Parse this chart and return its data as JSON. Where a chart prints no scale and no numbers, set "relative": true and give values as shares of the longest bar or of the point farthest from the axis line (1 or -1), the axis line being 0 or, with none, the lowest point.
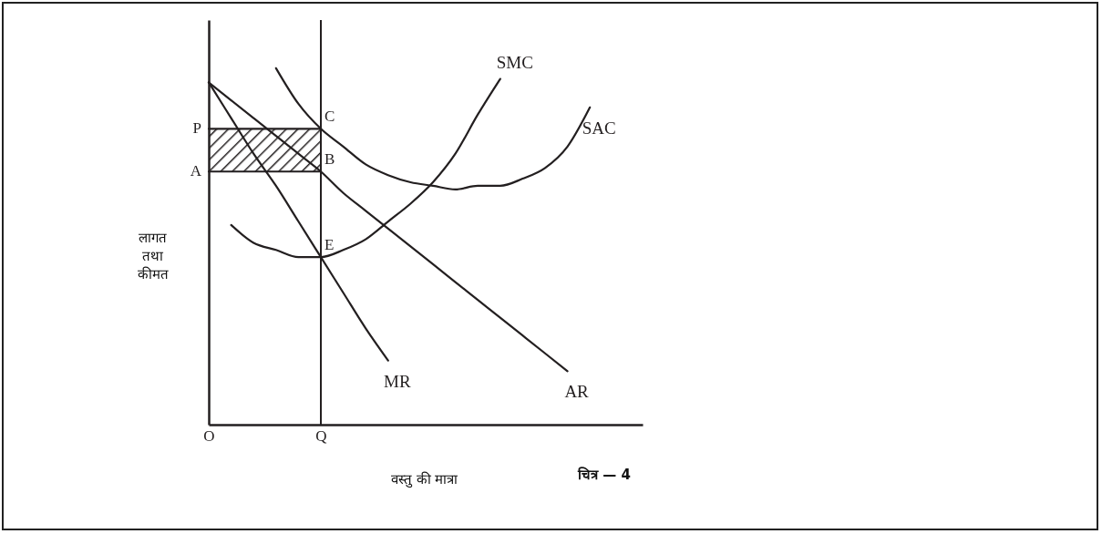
{
  "chart_data": {
    "type": "line",
    "relative": true,
    "xlabel": "वस्तु की मात्रा",
    "ylabel": "लागत तथा कीमत",
    "annotations": [
      {
        "text": "P",
        "x": "O",
        "y": 0.83
      },
      {
        "text": "A",
        "x": "O",
        "y": 0.71
      },
      {
        "text": "C",
        "x": "Q",
        "y": 0.83
      },
      {
        "text": "B",
        "x": "Q",
        "y": 0.71
      },
      {
        "text": "E",
        "x": "Q",
        "y": 0.47
      },
      "चित्र — 4"
    ],
    "categories": [
      "O",
      null,
      null,
      null,
      null,
      "Q",
      null,
      null,
      null,
      null,
      null,
      null,
      null,
      null,
      null,
      null,
      null,
      null,
      null,
      null
    ],
    "grid": false,
    "legend": false,
    "series": [
      {
        "name": "SMC",
        "color": "#231f20",
        "values": [
          null,
          0.56,
          0.51,
          0.49,
          0.47,
          0.47,
          0.49,
          0.52,
          0.57,
          0.62,
          0.68,
          0.76,
          0.87,
          0.97,
          null,
          null,
          null,
          null,
          null,
          null
        ]
      },
      {
        "name": "SAC",
        "color": "#231f20",
        "values": [
          null,
          null,
          null,
          1,
          0.9,
          0.83,
          0.78,
          0.73,
          0.7,
          0.68,
          0.67,
          0.66,
          0.67,
          0.67,
          0.69,
          0.72,
          0.78,
          0.89,
          null,
          null
        ]
      },
      {
        "name": "MR",
        "color": "#231f20",
        "values": [
          0.96,
          0.86,
          0.76,
          0.67,
          0.57,
          0.47,
          0.37,
          0.27,
          0.18,
          null,
          null,
          null,
          null,
          null,
          null,
          null,
          null,
          null,
          null,
          null
        ]
      },
      {
        "name": "AR",
        "color": "#231f20",
        "values": [
          0.96,
          0.91,
          0.86,
          0.81,
          0.76,
          0.71,
          0.65,
          0.6,
          0.55,
          0.5,
          0.45,
          0.4,
          0.35,
          0.3,
          0.25,
          0.2,
          0.15,
          null,
          null,
          null
        ]
      },
      {
        "color": "#231f20",
        "x": [
          "O",
          "Q"
        ],
        "values": [
          0.83,
          0.83
        ]
      },
      {
        "color": "#231f20",
        "x": [
          "O",
          "Q"
        ],
        "values": [
          0.71,
          0.71
        ]
      }
    ],
    "ref_lines": [
      {
        "axis": "x",
        "value": "Q"
      }
    ]
  }
}
